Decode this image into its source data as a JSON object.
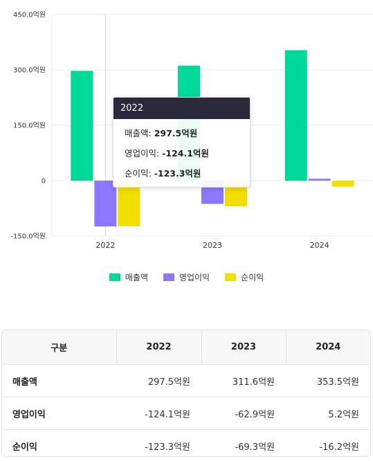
{
  "chart_data": {
    "type": "bar",
    "categories": [
      "2022",
      "2023",
      "2024"
    ],
    "series": [
      {
        "name": "매출액",
        "color": "#00d89a",
        "values": [
          297.5,
          311.6,
          353.5
        ]
      },
      {
        "name": "영업이익",
        "color": "#8b78ff",
        "values": [
          -124.1,
          -62.9,
          5.2
        ]
      },
      {
        "name": "순이익",
        "color": "#f2de00",
        "values": [
          -123.3,
          -69.3,
          -16.2
        ]
      }
    ],
    "ylim": [
      -150,
      450
    ],
    "yticks": [
      {
        "value": 450,
        "label": "450.0억원"
      },
      {
        "value": 300,
        "label": "300.0억원"
      },
      {
        "value": 150,
        "label": "150.0억원"
      },
      {
        "value": 0,
        "label": "0"
      },
      {
        "value": -150,
        "label": "-150.0억원"
      }
    ],
    "grid": true,
    "legend_position": "bottom-center",
    "tooltip": {
      "category": "2022",
      "rows": [
        {
          "name": "매출액",
          "value": "297.5억원"
        },
        {
          "name": "영업이익",
          "value": "-124.1억원"
        },
        {
          "name": "순이익",
          "value": "-123.3억원"
        }
      ]
    }
  },
  "table": {
    "headers": [
      "구분",
      "2022",
      "2023",
      "2024"
    ],
    "rows": [
      {
        "label": "매출액",
        "cells": [
          "297.5억원",
          "311.6억원",
          "353.5억원"
        ]
      },
      {
        "label": "영업이익",
        "cells": [
          "-124.1억원",
          "-62.9억원",
          "5.2억원"
        ]
      },
      {
        "label": "순이익",
        "cells": [
          "-123.3억원",
          "-69.3억원",
          "-16.2억원"
        ]
      }
    ]
  }
}
